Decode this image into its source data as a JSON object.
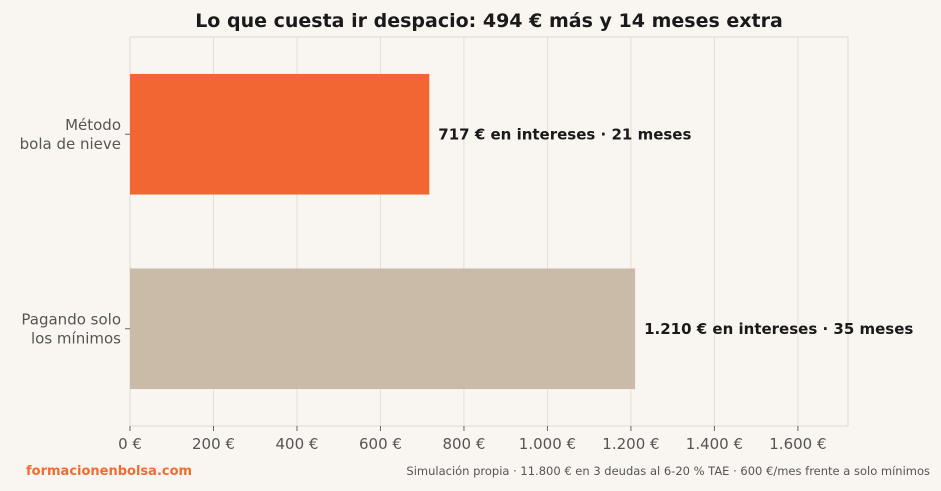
{
  "chart_data": {
    "type": "bar",
    "orientation": "horizontal",
    "title": "Lo que cuesta ir despacio: 494 € más y 14 meses extra",
    "categories": [
      [
        "Método",
        "bola de nieve"
      ],
      [
        "Pagando solo",
        "los mínimos"
      ]
    ],
    "values": [
      717,
      1210
    ],
    "bar_labels": [
      "717 € en intereses · 21 meses",
      "1.210 € en intereses · 35 meses"
    ],
    "bar_colors": [
      "#f26633",
      "#c9bba7"
    ],
    "xlim": [
      0,
      1720
    ],
    "x_ticks": [
      0,
      200,
      400,
      600,
      800,
      1000,
      1200,
      1400,
      1600
    ],
    "x_tick_labels": [
      "0 €",
      "200 €",
      "400 €",
      "600 €",
      "800 €",
      "1.000 €",
      "1.200 €",
      "1.400 €",
      "1.600 €"
    ],
    "grid": "vertical",
    "xlabel": "",
    "ylabel": ""
  },
  "footer": {
    "brand": "formacionenbolsa.com",
    "source": "Simulación propia · 11.800 € en 3 deudas al 6-20 % TAE · 600 €/mes frente a solo mínimos"
  },
  "colors": {
    "background": "#f9f6f1",
    "grid": "#e5ded4",
    "axis": "#e0d9cf",
    "brand": "#f26b34"
  }
}
